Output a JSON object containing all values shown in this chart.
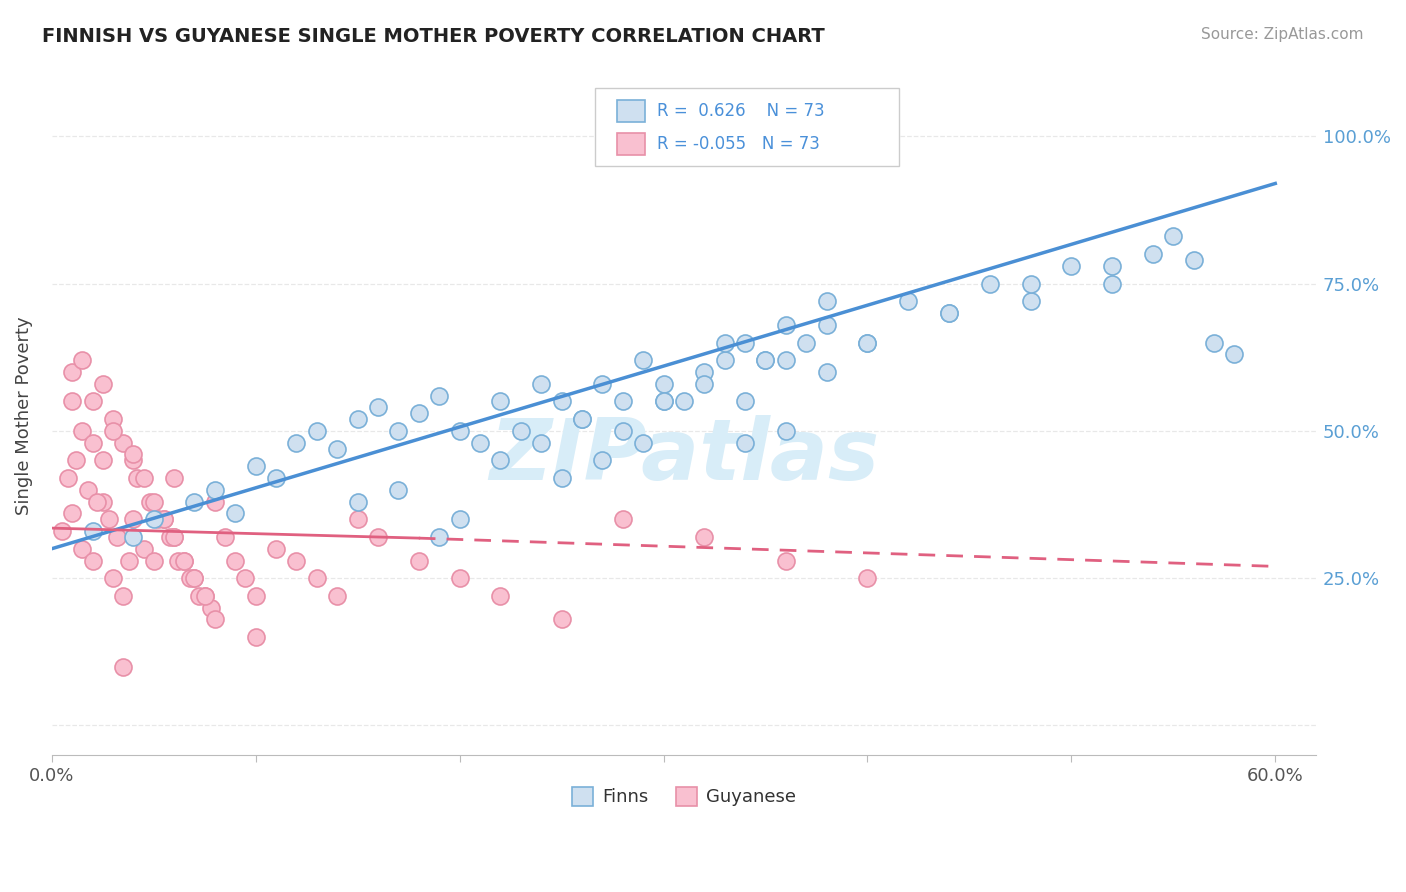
{
  "title": "FINNISH VS GUYANESE SINGLE MOTHER POVERTY CORRELATION CHART",
  "source": "Source: ZipAtlas.com",
  "ylabel": "Single Mother Poverty",
  "xlim": [
    0.0,
    0.62
  ],
  "ylim": [
    -0.05,
    1.1
  ],
  "finns_R": 0.626,
  "finns_N": 73,
  "guyanese_R": -0.055,
  "guyanese_N": 73,
  "finns_fill": "#cfe0f0",
  "guyanese_fill": "#f9c0d0",
  "finn_edge": "#7ab0d8",
  "guyanese_edge": "#e890a8",
  "finn_line_color": "#4a8fd4",
  "guyanese_line_color": "#e06080",
  "watermark_color": "#d8edf8",
  "grid_color": "#e8e8e8",
  "finn_scatter_x": [
    0.02,
    0.04,
    0.05,
    0.07,
    0.08,
    0.09,
    0.1,
    0.11,
    0.12,
    0.13,
    0.14,
    0.15,
    0.16,
    0.17,
    0.18,
    0.19,
    0.2,
    0.21,
    0.22,
    0.23,
    0.24,
    0.25,
    0.26,
    0.27,
    0.28,
    0.29,
    0.3,
    0.31,
    0.32,
    0.33,
    0.34,
    0.35,
    0.36,
    0.37,
    0.38,
    0.4,
    0.42,
    0.44,
    0.46,
    0.48,
    0.5,
    0.52,
    0.54,
    0.56,
    0.58,
    0.3,
    0.32,
    0.34,
    0.36,
    0.38,
    0.22,
    0.24,
    0.26,
    0.28,
    0.3,
    0.33,
    0.35,
    0.38,
    0.4,
    0.44,
    0.48,
    0.52,
    0.55,
    0.57,
    0.34,
    0.36,
    0.25,
    0.27,
    0.29,
    0.2,
    0.15,
    0.17,
    0.19
  ],
  "finn_scatter_y": [
    0.33,
    0.32,
    0.35,
    0.38,
    0.4,
    0.36,
    0.44,
    0.42,
    0.48,
    0.5,
    0.47,
    0.52,
    0.54,
    0.5,
    0.53,
    0.56,
    0.5,
    0.48,
    0.55,
    0.5,
    0.58,
    0.55,
    0.52,
    0.58,
    0.55,
    0.62,
    0.58,
    0.55,
    0.6,
    0.62,
    0.65,
    0.62,
    0.68,
    0.65,
    0.72,
    0.65,
    0.72,
    0.7,
    0.75,
    0.72,
    0.78,
    0.75,
    0.8,
    0.79,
    0.63,
    0.55,
    0.58,
    0.55,
    0.62,
    0.6,
    0.45,
    0.48,
    0.52,
    0.5,
    0.55,
    0.65,
    0.62,
    0.68,
    0.65,
    0.7,
    0.75,
    0.78,
    0.83,
    0.65,
    0.48,
    0.5,
    0.42,
    0.45,
    0.48,
    0.35,
    0.38,
    0.4,
    0.32
  ],
  "guyanese_scatter_x": [
    0.005,
    0.01,
    0.015,
    0.02,
    0.025,
    0.03,
    0.035,
    0.04,
    0.045,
    0.05,
    0.055,
    0.06,
    0.065,
    0.07,
    0.075,
    0.008,
    0.012,
    0.018,
    0.022,
    0.028,
    0.032,
    0.038,
    0.042,
    0.048,
    0.052,
    0.058,
    0.062,
    0.068,
    0.072,
    0.078,
    0.01,
    0.015,
    0.02,
    0.025,
    0.03,
    0.035,
    0.04,
    0.045,
    0.05,
    0.055,
    0.06,
    0.065,
    0.07,
    0.075,
    0.08,
    0.085,
    0.09,
    0.095,
    0.1,
    0.11,
    0.12,
    0.13,
    0.14,
    0.15,
    0.16,
    0.18,
    0.2,
    0.22,
    0.25,
    0.28,
    0.32,
    0.36,
    0.4,
    0.01,
    0.02,
    0.03,
    0.04,
    0.06,
    0.08,
    0.1,
    0.015,
    0.025,
    0.035
  ],
  "guyanese_scatter_y": [
    0.33,
    0.36,
    0.3,
    0.28,
    0.38,
    0.25,
    0.22,
    0.35,
    0.3,
    0.28,
    0.35,
    0.32,
    0.28,
    0.25,
    0.22,
    0.42,
    0.45,
    0.4,
    0.38,
    0.35,
    0.32,
    0.28,
    0.42,
    0.38,
    0.35,
    0.32,
    0.28,
    0.25,
    0.22,
    0.2,
    0.55,
    0.5,
    0.48,
    0.45,
    0.52,
    0.48,
    0.45,
    0.42,
    0.38,
    0.35,
    0.32,
    0.28,
    0.25,
    0.22,
    0.18,
    0.32,
    0.28,
    0.25,
    0.22,
    0.3,
    0.28,
    0.25,
    0.22,
    0.35,
    0.32,
    0.28,
    0.25,
    0.22,
    0.18,
    0.35,
    0.32,
    0.28,
    0.25,
    0.6,
    0.55,
    0.5,
    0.46,
    0.42,
    0.38,
    0.15,
    0.62,
    0.58,
    0.1
  ]
}
